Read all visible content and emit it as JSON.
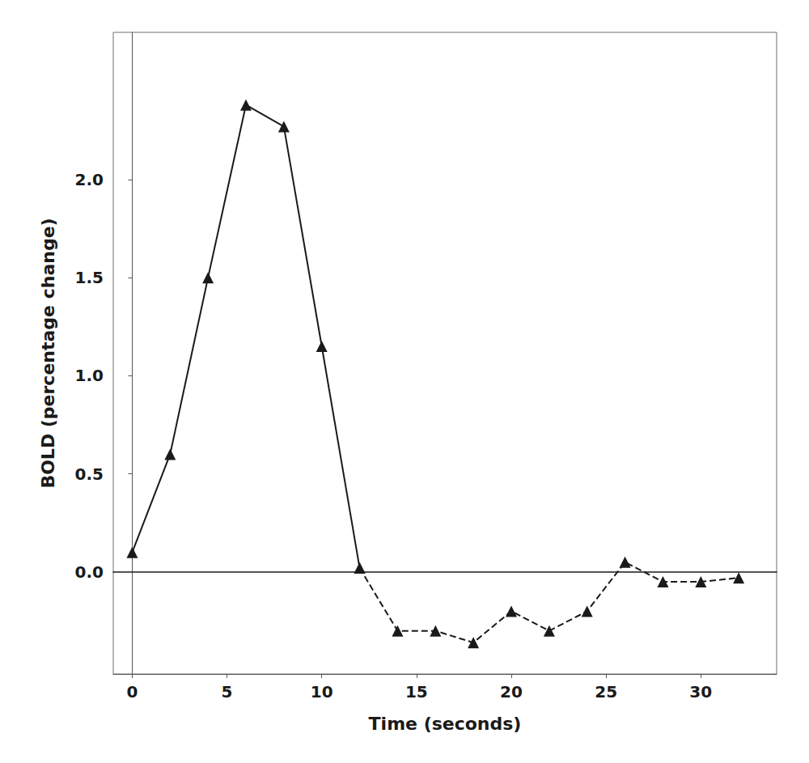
{
  "chart_data": {
    "type": "line",
    "xlabel": "Time (seconds)",
    "ylabel": "BOLD (percentage change)",
    "x": [
      0,
      2,
      4,
      6,
      8,
      10,
      12,
      14,
      16,
      18,
      20,
      22,
      24,
      26,
      28,
      30,
      32
    ],
    "series": [
      {
        "color": "#1a1a1a",
        "marker": "triangle",
        "line_style": "solid",
        "values": [
          0.1,
          0.6,
          1.5,
          2.38,
          2.27,
          1.15,
          0.02,
          null,
          null,
          null,
          null,
          null,
          null,
          null,
          null,
          null,
          null
        ]
      },
      {
        "color": "#1a1a1a",
        "marker": "triangle",
        "line_style": "dashed",
        "values": [
          null,
          null,
          null,
          null,
          null,
          null,
          0.02,
          -0.3,
          -0.3,
          -0.36,
          -0.2,
          -0.3,
          -0.2,
          0.05,
          -0.05,
          -0.05,
          -0.03
        ]
      }
    ],
    "xlim": [
      -1.0,
      34.0
    ],
    "ylim": [
      -0.52,
      2.75
    ],
    "xticks": [
      0,
      5,
      10,
      15,
      20,
      25,
      30
    ],
    "yticks": [
      {
        "value": 0.0,
        "label": "0.0"
      },
      0.5,
      {
        "value": 1.0,
        "label": "1.0"
      },
      1.5,
      {
        "value": 2.0,
        "label": "2.0"
      }
    ],
    "grid": false
  }
}
